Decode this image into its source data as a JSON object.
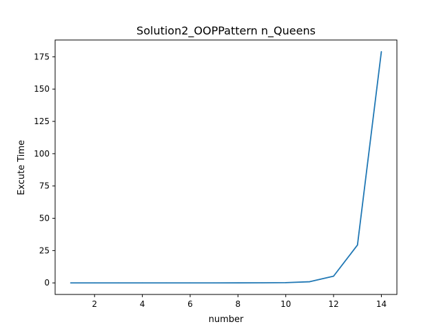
{
  "chart_data": {
    "type": "line",
    "title": "Solution2_OOPPattern  n_Queens",
    "xlabel": "number",
    "ylabel": "Excute Time",
    "xlim": [
      0.35,
      14.65
    ],
    "ylim": [
      -8.95,
      188.0
    ],
    "xticks": [
      2,
      4,
      6,
      8,
      10,
      12,
      14
    ],
    "yticks": [
      0,
      25,
      50,
      75,
      100,
      125,
      150,
      175
    ],
    "grid": false,
    "legend": "none",
    "series": [
      {
        "color": "#1f77b4",
        "x": [
          1,
          2,
          3,
          4,
          5,
          6,
          7,
          8,
          9,
          10,
          11,
          12,
          13,
          14
        ],
        "y": [
          0.0,
          0.0,
          0.0,
          0.0,
          0.0,
          0.0,
          0.0,
          0.01,
          0.05,
          0.2,
          0.9,
          5.2,
          29.3,
          179.0
        ]
      }
    ]
  }
}
